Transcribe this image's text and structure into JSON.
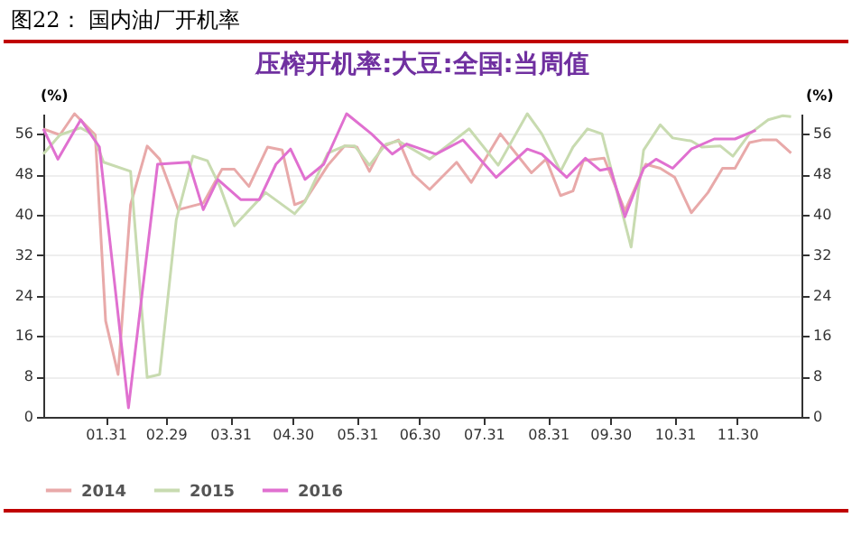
{
  "chart_data": {
    "type": "line",
    "title": "图22： 国内油厂开机率",
    "subtitle": "压榨开机率:大豆:全国:当周值",
    "ylabel": "(%)",
    "y2label": "(%)",
    "xlim": [
      "--01-01",
      "--12-31"
    ],
    "xticks": [
      {
        "value": "--01-31",
        "label": "01.31"
      },
      {
        "value": "--02-29",
        "label": "02.29"
      },
      {
        "value": "--03-31",
        "label": "03.31"
      },
      {
        "value": "--04-30",
        "label": "04.30"
      },
      {
        "value": "--05-31",
        "label": "05.31"
      },
      {
        "value": "--06-30",
        "label": "06.30"
      },
      {
        "value": "--07-31",
        "label": "07.31"
      },
      {
        "value": "--08-31",
        "label": "08.31"
      },
      {
        "value": "--09-30",
        "label": "09.30"
      },
      {
        "value": "--10-31",
        "label": "10.31"
      },
      {
        "value": "--11-30",
        "label": "11.30"
      }
    ],
    "ylim": [
      0,
      60
    ],
    "yticks": [
      0,
      8,
      16,
      24,
      32,
      40,
      48,
      56
    ],
    "y2lim": [
      0,
      60
    ],
    "y2ticks": [
      0,
      8,
      16,
      24,
      32,
      40,
      48,
      56
    ],
    "grid": "y",
    "legend": "bottom",
    "series": [
      {
        "name": "2014",
        "color": "#e8a9a9",
        "x": [
          "--01-01",
          "--01-09",
          "--01-16",
          "--01-26",
          "--01-31",
          "--02-06",
          "--02-12",
          "--02-20",
          "--02-26",
          "--03-06",
          "--03-18",
          "--03-27",
          "--04-02",
          "--04-09",
          "--04-18",
          "--04-25",
          "--05-01",
          "--05-06",
          "--05-17",
          "--05-25",
          "--05-31",
          "--06-06",
          "--06-12",
          "--06-20",
          "--06-27",
          "--07-05",
          "--07-18",
          "--07-25",
          "--08-08",
          "--08-23",
          "--08-30",
          "--09-06",
          "--09-12",
          "--09-17",
          "--09-27",
          "--10-07",
          "--10-17",
          "--10-24",
          "--10-31",
          "--11-08",
          "--11-16",
          "--11-23",
          "--11-29",
          "--12-06",
          "--12-12",
          "--12-19",
          "--12-26"
        ],
        "values": [
          57,
          55.8,
          60,
          55.8,
          19,
          8.4,
          42,
          53.6,
          51,
          41,
          42.3,
          49,
          49,
          45.6,
          53.4,
          52.8,
          42,
          42.8,
          49.8,
          53.6,
          53.4,
          48.6,
          53.4,
          54.8,
          48,
          45,
          50.4,
          46.4,
          56,
          48.3,
          51,
          43.8,
          44.7,
          50.7,
          51.2,
          40.8,
          50,
          49.2,
          47.4,
          40.4,
          44.4,
          49.2,
          49.2,
          54.3,
          54.8,
          54.8,
          52.2
        ]
      },
      {
        "name": "2015",
        "color": "#c8dbb0",
        "x": [
          "--01-01",
          "--01-09",
          "--01-19",
          "--01-25",
          "--01-30",
          "--02-12",
          "--02-20",
          "--02-26",
          "--03-05",
          "--03-13",
          "--03-20",
          "--03-26",
          "--04-02",
          "--04-17",
          "--05-01",
          "--05-06",
          "--05-17",
          "--05-25",
          "--05-30",
          "--06-06",
          "--06-14",
          "--06-20",
          "--07-05",
          "--07-24",
          "--08-07",
          "--08-21",
          "--08-28",
          "--09-06",
          "--09-12",
          "--09-19",
          "--09-26",
          "--10-10",
          "--10-16",
          "--10-24",
          "--10-30",
          "--11-08",
          "--11-13",
          "--11-22",
          "--11-28",
          "--12-06",
          "--12-15",
          "--12-22",
          "--12-26"
        ],
        "values": [
          52,
          55.8,
          57.2,
          55.8,
          50.4,
          48.6,
          7.8,
          8.4,
          39,
          51.6,
          50.7,
          45.6,
          37.8,
          44.4,
          40.2,
          42.6,
          52.2,
          53.6,
          53.6,
          49.8,
          54,
          54.6,
          51,
          57,
          49.8,
          60,
          56,
          48.6,
          53.4,
          57,
          56,
          33.6,
          52.8,
          57.8,
          55.2,
          54.6,
          53.4,
          53.6,
          51.6,
          56,
          58.8,
          59.6,
          59.4
        ]
      },
      {
        "name": "2016",
        "color": "#e070d0",
        "x": [
          "--01-01",
          "--01-08",
          "--01-19",
          "--01-28",
          "--02-11",
          "--02-25",
          "--03-11",
          "--03-18",
          "--03-25",
          "--04-05",
          "--04-14",
          "--04-22",
          "--04-29",
          "--05-06",
          "--05-15",
          "--05-26",
          "--06-07",
          "--06-17",
          "--06-24",
          "--07-08",
          "--07-21",
          "--08-06",
          "--08-21",
          "--08-28",
          "--09-09",
          "--09-18",
          "--09-25",
          "--09-30",
          "--10-07",
          "--10-16",
          "--10-22",
          "--10-30",
          "--11-08",
          "--11-19",
          "--11-29",
          "--12-09"
        ],
        "values": [
          57,
          51,
          58.8,
          53.4,
          1.8,
          50,
          50.4,
          41,
          47,
          43,
          43,
          50,
          53,
          47,
          50,
          60,
          56,
          52,
          54,
          52,
          54.8,
          47.4,
          53,
          52,
          47.4,
          51.2,
          48.8,
          49.2,
          39.6,
          49.2,
          51,
          49.2,
          53,
          55,
          55,
          56.7
        ]
      }
    ]
  }
}
